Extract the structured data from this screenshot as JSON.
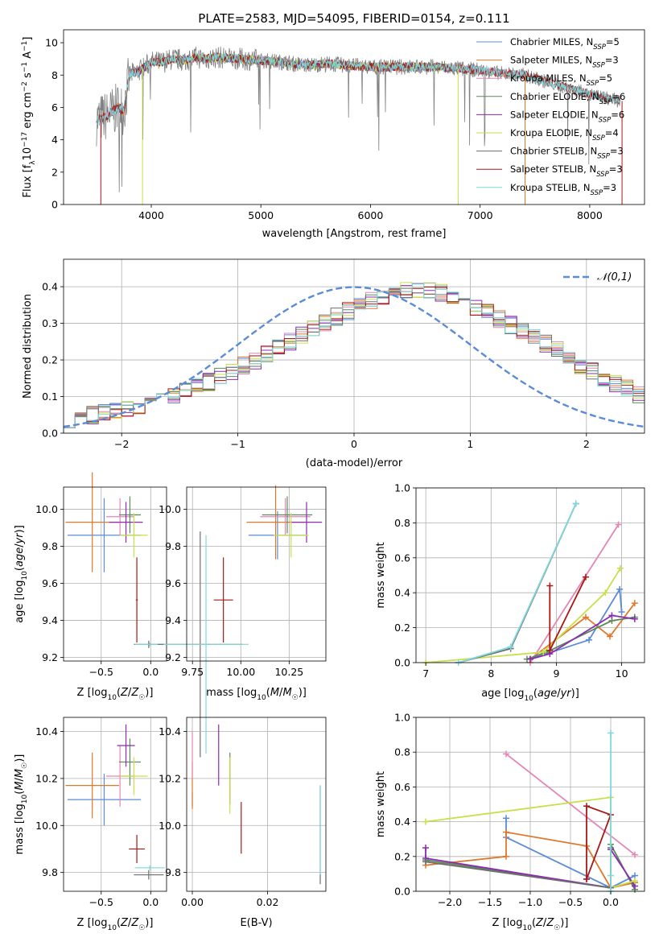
{
  "figure_title": "PLATE=2583, MJD=54095, FIBERID=0154, z=0.111",
  "colors": {
    "Chabrier MILES": "#5b8bd9",
    "Salpeter MILES": "#e0782a",
    "Kroupa MILES": "#e486b6",
    "Chabrier ELODIE": "#5a8a5a",
    "Salpeter ELODIE": "#8b2bb0",
    "Kroupa ELODIE": "#c7e04a",
    "Chabrier STELIB": "#6e6e6e",
    "Salpeter STELIB": "#a81818",
    "Kroupa STELIB": "#7fd8dc",
    "data": "#808080",
    "gauss": "#5b8bd9"
  },
  "chart_data": [
    {
      "id": "spectrum",
      "type": "line",
      "xlabel": "wavelength [Angstrom, rest frame]",
      "ylabel": "Flux [f_λ10^-17 erg cm^-2 s^-1 A^-1]",
      "xlim": [
        3200,
        8500
      ],
      "ylim": [
        0,
        10.8
      ],
      "xticks": [
        4000,
        5000,
        6000,
        7000,
        8000
      ],
      "yticks": [
        0,
        2,
        4,
        6,
        8,
        10
      ],
      "grid": false,
      "legend_position": "top-right",
      "continuum": {
        "x": [
          3500,
          3600,
          3700,
          3750,
          3800,
          3900,
          4000,
          4100,
          4200,
          4300,
          4400,
          4500,
          4600,
          4800,
          5000,
          5200,
          5400,
          5600,
          5800,
          6000,
          6200,
          6400,
          6600,
          6800,
          7000,
          7200,
          7400,
          7600,
          7800,
          8000,
          8200,
          8280
        ],
        "y": [
          5.2,
          5.5,
          6.0,
          5.8,
          8.0,
          8.3,
          8.8,
          8.8,
          9.0,
          8.9,
          9.1,
          9.0,
          9.1,
          9.0,
          8.9,
          8.8,
          8.6,
          8.7,
          8.6,
          8.5,
          8.5,
          8.5,
          8.5,
          8.4,
          8.3,
          8.1,
          8.0,
          7.6,
          7.2,
          6.8,
          6.5,
          6.4
        ]
      },
      "legend": [
        {
          "name": "Chabrier MILES, N_SSP=5",
          "label_base": "Chabrier MILES, N",
          "label_sub": "SSP",
          "label_tail": "=5"
        },
        {
          "name": "Salpeter MILES, N_SSP=3",
          "label_base": "Salpeter MILES, N",
          "label_sub": "SSP",
          "label_tail": "=3"
        },
        {
          "name": "Kroupa MILES, N_SSP=5",
          "label_base": "Kroupa MILES, N",
          "label_sub": "SSP",
          "label_tail": "=5"
        },
        {
          "name": "Chabrier ELODIE, N_SSP=6",
          "label_base": "Chabrier ELODIE, N",
          "label_sub": "SSP",
          "label_tail": "=6"
        },
        {
          "name": "Salpeter ELODIE, N_SSP=6",
          "label_base": "Salpeter ELODIE, N",
          "label_sub": "SSP",
          "label_tail": "=6"
        },
        {
          "name": "Kroupa ELODIE, N_SSP=4",
          "label_base": "Kroupa ELODIE, N",
          "label_sub": "SSP",
          "label_tail": "=4"
        },
        {
          "name": "Chabrier STELIB, N_SSP=3",
          "label_base": "Chabrier STELIB, N",
          "label_sub": "SSP",
          "label_tail": "=3"
        },
        {
          "name": "Salpeter STELIB, N_SSP=3",
          "label_base": "Salpeter STELIB, N",
          "label_sub": "SSP",
          "label_tail": "=3"
        },
        {
          "name": "Kroupa STELIB, N_SSP=3",
          "label_base": "Kroupa STELIB, N",
          "label_sub": "SSP",
          "label_tail": "=3"
        }
      ]
    },
    {
      "id": "residuals",
      "type": "bar",
      "xlabel": "(data-model)/error",
      "ylabel": "Normed distribution",
      "xlim": [
        -2.5,
        2.5
      ],
      "ylim": [
        0,
        0.475
      ],
      "xticks": [
        -2,
        -1,
        0,
        1,
        2
      ],
      "yticks": [
        0.0,
        0.1,
        0.2,
        0.3,
        0.4
      ],
      "grid": true,
      "legend_position": "top-right",
      "gauss_label": "𝒩(0,1)",
      "bin_width": 0.1,
      "x_start": -2.5,
      "model_values": [
        0.04,
        0.045,
        0.05,
        0.055,
        0.06,
        0.068,
        0.075,
        0.08,
        0.09,
        0.1,
        0.112,
        0.125,
        0.14,
        0.155,
        0.17,
        0.185,
        0.2,
        0.215,
        0.23,
        0.25,
        0.268,
        0.285,
        0.3,
        0.318,
        0.335,
        0.35,
        0.362,
        0.372,
        0.382,
        0.39,
        0.392,
        0.39,
        0.383,
        0.373,
        0.36,
        0.345,
        0.33,
        0.313,
        0.295,
        0.278,
        0.26,
        0.243,
        0.225,
        0.205,
        0.188,
        0.17,
        0.152,
        0.135,
        0.12,
        0.105
      ]
    },
    {
      "id": "age_vs_Z",
      "type": "scatter",
      "xlabel": "Z [log10(Z/Z☉)]",
      "ylabel": "age [log10(age/yr)]",
      "xlim": [
        -0.88,
        0.16
      ],
      "ylim": [
        9.18,
        10.12
      ],
      "xticks": [
        -0.5,
        0.0
      ],
      "yticks": [
        9.2,
        9.4,
        9.6,
        9.8,
        10.0
      ],
      "grid": true,
      "points": [
        {
          "model": "Chabrier MILES",
          "x": -0.47,
          "y": 9.86,
          "dx": 0.37,
          "dy": 0.2
        },
        {
          "model": "Salpeter MILES",
          "x": -0.59,
          "y": 9.93,
          "dx": 0.27,
          "dy": 0.27
        },
        {
          "model": "Kroupa MILES",
          "x": -0.31,
          "y": 9.96,
          "dx": 0.14,
          "dy": 0.1
        },
        {
          "model": "Chabrier ELODIE",
          "x": -0.21,
          "y": 9.97,
          "dx": 0.11,
          "dy": 0.1
        },
        {
          "model": "Salpeter ELODIE",
          "x": -0.25,
          "y": 9.93,
          "dx": 0.17,
          "dy": 0.11
        },
        {
          "model": "Kroupa ELODIE",
          "x": -0.17,
          "y": 9.86,
          "dx": 0.14,
          "dy": 0.12
        },
        {
          "model": "Chabrier STELIB",
          "x": -0.02,
          "y": 9.27,
          "dx": 0.15,
          "dy": 0.02
        },
        {
          "model": "Salpeter STELIB",
          "x": -0.14,
          "y": 9.51,
          "dx": 0.01,
          "dy": 0.23
        },
        {
          "model": "Kroupa STELIB",
          "x": -0.01,
          "y": 9.27,
          "dx": 0.15,
          "dy": 0.01
        }
      ]
    },
    {
      "id": "age_vs_mass",
      "type": "scatter",
      "xlabel": "mass [log10(M/M☉)]",
      "ylabel": "",
      "xlim": [
        9.72,
        10.44
      ],
      "ylim": [
        9.18,
        10.12
      ],
      "xticks": [
        9.75,
        10.0,
        10.25
      ],
      "yticks": [
        9.2,
        9.4,
        9.6,
        9.8,
        10.0
      ],
      "grid": true,
      "points": [
        {
          "model": "Chabrier MILES",
          "x": 10.19,
          "y": 9.86,
          "dx": 0.15,
          "dy": 0.13
        },
        {
          "model": "Salpeter MILES",
          "x": 10.18,
          "y": 9.93,
          "dx": 0.15,
          "dy": 0.2
        },
        {
          "model": "Kroupa MILES",
          "x": 10.23,
          "y": 9.96,
          "dx": 0.13,
          "dy": 0.1
        },
        {
          "model": "Chabrier ELODIE",
          "x": 10.24,
          "y": 9.97,
          "dx": 0.13,
          "dy": 0.1
        },
        {
          "model": "Salpeter ELODIE",
          "x": 10.34,
          "y": 9.93,
          "dx": 0.08,
          "dy": 0.11
        },
        {
          "model": "Kroupa ELODIE",
          "x": 10.26,
          "y": 9.86,
          "dx": 0.09,
          "dy": 0.12
        },
        {
          "model": "Chabrier STELIB",
          "x": 9.79,
          "y": 9.27,
          "dx": 0.22,
          "dy": 0.61
        },
        {
          "model": "Salpeter STELIB",
          "x": 9.91,
          "y": 9.51,
          "dx": 0.05,
          "dy": 0.23
        },
        {
          "model": "Kroupa STELIB",
          "x": 9.82,
          "y": 9.27,
          "dx": 0.22,
          "dy": 0.59
        }
      ]
    },
    {
      "id": "mass_weight_vs_age",
      "type": "line",
      "xlabel": "age [log10(age/yr)]",
      "ylabel": "mass weight",
      "xlim": [
        6.85,
        10.35
      ],
      "ylim": [
        0,
        1.0
      ],
      "xticks": [
        7,
        8,
        9,
        10
      ],
      "yticks": [
        0.0,
        0.2,
        0.4,
        0.6,
        0.8,
        1.0
      ],
      "grid": true,
      "series": [
        {
          "model": "Chabrier MILES",
          "x": [
            8.6,
            9.5,
            9.97,
            10.0
          ],
          "y": [
            0.02,
            0.13,
            0.42,
            0.29
          ]
        },
        {
          "model": "Salpeter MILES",
          "x": [
            8.6,
            9.45,
            9.82,
            10.2
          ],
          "y": [
            0.02,
            0.26,
            0.15,
            0.34
          ]
        },
        {
          "model": "Kroupa MILES",
          "x": [
            8.6,
            9.95
          ],
          "y": [
            0.0,
            0.79
          ]
        },
        {
          "model": "Chabrier ELODIE",
          "x": [
            8.55,
            8.85,
            9.85,
            10.2
          ],
          "y": [
            0.02,
            0.06,
            0.24,
            0.26
          ]
        },
        {
          "model": "Salpeter ELODIE",
          "x": [
            8.6,
            8.9,
            9.85,
            10.2
          ],
          "y": [
            0.02,
            0.05,
            0.27,
            0.25
          ]
        },
        {
          "model": "Kroupa ELODIE",
          "x": [
            7.0,
            8.8,
            9.75,
            9.98
          ],
          "y": [
            0.0,
            0.06,
            0.4,
            0.54
          ]
        },
        {
          "model": "Chabrier STELIB",
          "x": [
            7.5,
            8.3,
            9.3
          ],
          "y": [
            0.0,
            0.08,
            0.91
          ]
        },
        {
          "model": "Salpeter STELIB",
          "x": [
            8.9,
            8.9,
            9.45
          ],
          "y": [
            0.44,
            0.07,
            0.49
          ]
        },
        {
          "model": "Kroupa STELIB",
          "x": [
            7.5,
            8.3,
            9.3
          ],
          "y": [
            0.0,
            0.09,
            0.91
          ]
        }
      ]
    },
    {
      "id": "mass_vs_Z",
      "type": "scatter",
      "xlabel": "Z [log10(Z/Z☉)]",
      "ylabel": "mass [log10(M/M☉)]",
      "xlim": [
        -0.88,
        0.16
      ],
      "ylim": [
        9.72,
        10.46
      ],
      "xticks": [
        -0.5,
        0.0
      ],
      "yticks": [
        9.8,
        10.0,
        10.2,
        10.4
      ],
      "grid": true,
      "points": [
        {
          "model": "Chabrier MILES",
          "x": -0.47,
          "y": 10.11,
          "dx": 0.37,
          "dy": 0.11
        },
        {
          "model": "Salpeter MILES",
          "x": -0.59,
          "y": 10.17,
          "dx": 0.27,
          "dy": 0.14
        },
        {
          "model": "Kroupa MILES",
          "x": -0.31,
          "y": 10.21,
          "dx": 0.14,
          "dy": 0.13
        },
        {
          "model": "Chabrier ELODIE",
          "x": -0.21,
          "y": 10.27,
          "dx": 0.11,
          "dy": 0.1
        },
        {
          "model": "Salpeter ELODIE",
          "x": -0.25,
          "y": 10.34,
          "dx": 0.09,
          "dy": 0.09
        },
        {
          "model": "Kroupa ELODIE",
          "x": -0.17,
          "y": 10.21,
          "dx": 0.14,
          "dy": 0.08
        },
        {
          "model": "Chabrier STELIB",
          "x": -0.02,
          "y": 9.79,
          "dx": 0.15,
          "dy": 0.02
        },
        {
          "model": "Salpeter STELIB",
          "x": -0.14,
          "y": 9.9,
          "dx": 0.08,
          "dy": 0.06
        },
        {
          "model": "Kroupa STELIB",
          "x": -0.01,
          "y": 9.82,
          "dx": 0.15,
          "dy": 0.01
        }
      ]
    },
    {
      "id": "mass_vs_EBV",
      "type": "scatter",
      "xlabel": "E(B-V)",
      "ylabel": "",
      "xlim": [
        -0.0015,
        0.0355
      ],
      "ylim": [
        9.72,
        10.46
      ],
      "xticks": [
        0.0,
        0.02
      ],
      "yticks": [
        9.8,
        10.0,
        10.2,
        10.4
      ],
      "grid": true,
      "points": [
        {
          "model": "Chabrier MILES",
          "x": 0.0,
          "y": 10.11,
          "dx": 0.0,
          "dy": 0.03
        },
        {
          "model": "Salpeter MILES",
          "x": 0.0,
          "y": 10.17,
          "dx": 0.0,
          "dy": 0.1
        },
        {
          "model": "Kroupa MILES",
          "x": 0.0,
          "y": 10.3,
          "dx": 0.0,
          "dy": 0.1
        },
        {
          "model": "Chabrier ELODIE",
          "x": 0.01,
          "y": 10.2,
          "dx": 0.0,
          "dy": 0.11
        },
        {
          "model": "Salpeter ELODIE",
          "x": 0.007,
          "y": 10.3,
          "dx": 0.0,
          "dy": 0.13
        },
        {
          "model": "Kroupa ELODIE",
          "x": 0.01,
          "y": 10.17,
          "dx": 0.0,
          "dy": 0.12
        },
        {
          "model": "Chabrier STELIB",
          "x": 0.034,
          "y": 9.96,
          "dx": 0.0,
          "dy": 0.21
        },
        {
          "model": "Salpeter STELIB",
          "x": 0.013,
          "y": 9.99,
          "dx": 0.0,
          "dy": 0.11
        },
        {
          "model": "Kroupa STELIB",
          "x": 0.034,
          "y": 9.98,
          "dx": 0.0,
          "dy": 0.19
        }
      ]
    },
    {
      "id": "mass_weight_vs_Z",
      "type": "line",
      "xlabel": "Z [log10(Z/Z☉)]",
      "ylabel": "mass weight",
      "xlim": [
        -2.42,
        0.42
      ],
      "ylim": [
        0,
        1.0
      ],
      "xticks": [
        -2.0,
        -1.5,
        -1.0,
        -0.5,
        0.0
      ],
      "yticks": [
        0.0,
        0.2,
        0.4,
        0.6,
        0.8,
        1.0
      ],
      "grid": true,
      "series": [
        {
          "model": "Chabrier MILES",
          "x": [
            -1.3,
            -1.3,
            0.0,
            0.3
          ],
          "y": [
            0.42,
            0.31,
            0.02,
            0.09
          ]
        },
        {
          "model": "Salpeter MILES",
          "x": [
            -2.3,
            -1.3,
            -1.3,
            -0.3,
            0.0,
            0.3
          ],
          "y": [
            0.15,
            0.2,
            0.34,
            0.26,
            0.02,
            0.05
          ]
        },
        {
          "model": "Kroupa MILES",
          "x": [
            -1.3,
            0.3
          ],
          "y": [
            0.79,
            0.21
          ]
        },
        {
          "model": "Chabrier ELODIE",
          "x": [
            -2.3,
            0.0,
            0.0,
            0.3
          ],
          "y": [
            0.18,
            0.02,
            0.27,
            0.01
          ]
        },
        {
          "model": "Salpeter ELODIE",
          "x": [
            -2.3,
            -2.3,
            0.0,
            0.0,
            0.3
          ],
          "y": [
            0.25,
            0.19,
            0.02,
            0.24,
            0.03
          ]
        },
        {
          "model": "Kroupa ELODIE",
          "x": [
            -2.3,
            0.0,
            0.0,
            0.3
          ],
          "y": [
            0.4,
            0.54,
            0.02,
            0.06
          ]
        },
        {
          "model": "Chabrier STELIB",
          "x": [
            -2.3,
            0.0,
            0.0
          ],
          "y": [
            0.17,
            0.02,
            0.25
          ]
        },
        {
          "model": "Salpeter STELIB",
          "x": [
            -0.3,
            -0.3,
            0.0,
            -0.3
          ],
          "y": [
            0.07,
            0.49,
            0.44,
            0.07
          ]
        },
        {
          "model": "Kroupa STELIB",
          "x": [
            0.0,
            0.0,
            0.0
          ],
          "y": [
            0.91,
            0.09,
            0.0
          ]
        }
      ]
    }
  ]
}
